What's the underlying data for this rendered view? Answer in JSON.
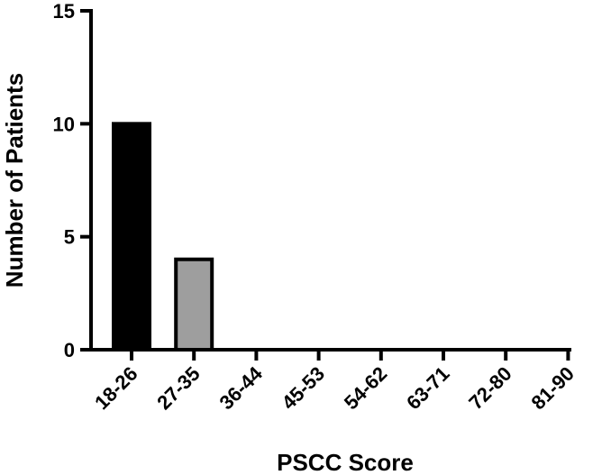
{
  "chart_data": {
    "type": "bar",
    "categories": [
      "18-26",
      "27-35",
      "36-44",
      "45-53",
      "54-62",
      "63-71",
      "72-80",
      "81-90"
    ],
    "values": [
      10,
      4,
      0,
      0,
      0,
      0,
      0,
      0
    ],
    "bar_colors": [
      "#000000",
      "#9e9e9e",
      "#000000",
      "#000000",
      "#000000",
      "#000000",
      "#000000",
      "#000000"
    ],
    "xlabel": "PSCC Score",
    "ylabel": "Number of Patients",
    "ylim": [
      0,
      15
    ],
    "yticks": [
      0,
      5,
      10,
      15
    ],
    "grid": false,
    "legend": "none"
  }
}
